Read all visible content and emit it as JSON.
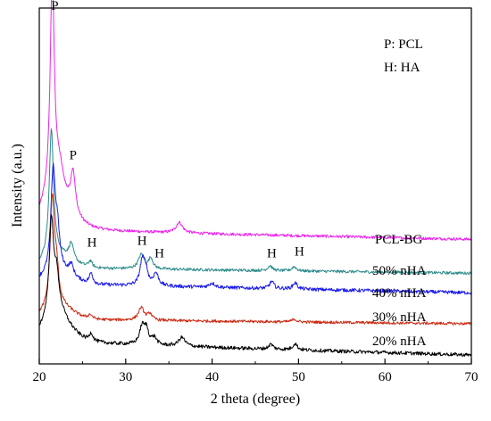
{
  "chart_data": {
    "type": "line",
    "title": "",
    "xlabel": "2 theta (degree)",
    "ylabel": "Intensity (a.u.)",
    "xlim": [
      20,
      70
    ],
    "xticks": [
      20,
      30,
      40,
      50,
      60,
      70
    ],
    "yticks_shown": false,
    "grid": false,
    "legend_position": "top-right",
    "legend": [
      {
        "text": "P: PCL"
      },
      {
        "text": "H: HA"
      }
    ],
    "series": [
      {
        "name": "PCL-BG",
        "color": "#ee22ee",
        "baseline": 0.375,
        "drift": -0.025,
        "noise": 0.004,
        "peaks": [
          {
            "x": 21.5,
            "h": 0.6,
            "w": 0.28
          },
          {
            "x": 23.9,
            "h": 0.115,
            "w": 0.32
          },
          {
            "x": 22.4,
            "h": 0.05,
            "w": 0.5
          },
          {
            "x": 36.2,
            "h": 0.03,
            "w": 0.45
          },
          {
            "x": 21.8,
            "h": 0.09,
            "w": 1.5
          }
        ]
      },
      {
        "name": "50% nHA",
        "color": "#2e8b8b",
        "baseline": 0.27,
        "drift": -0.015,
        "noise": 0.004,
        "peaks": [
          {
            "x": 21.4,
            "h": 0.36,
            "w": 0.3
          },
          {
            "x": 23.7,
            "h": 0.045,
            "w": 0.3
          },
          {
            "x": 25.9,
            "h": 0.018,
            "w": 0.25
          },
          {
            "x": 31.8,
            "h": 0.04,
            "w": 0.4
          },
          {
            "x": 32.9,
            "h": 0.03,
            "w": 0.3
          },
          {
            "x": 46.7,
            "h": 0.014,
            "w": 0.3
          },
          {
            "x": 49.5,
            "h": 0.012,
            "w": 0.3
          }
        ]
      },
      {
        "name": "40% nHA",
        "color": "#1a1aee",
        "baseline": 0.225,
        "drift": -0.025,
        "noise": 0.005,
        "peaks": [
          {
            "x": 21.6,
            "h": 0.28,
            "w": 0.3
          },
          {
            "x": 22.1,
            "h": 0.1,
            "w": 0.3
          },
          {
            "x": 23.7,
            "h": 0.03,
            "w": 0.3
          },
          {
            "x": 26.0,
            "h": 0.03,
            "w": 0.25
          },
          {
            "x": 31.9,
            "h": 0.065,
            "w": 0.3
          },
          {
            "x": 32.3,
            "h": 0.045,
            "w": 0.3
          },
          {
            "x": 33.5,
            "h": 0.035,
            "w": 0.35
          },
          {
            "x": 40.0,
            "h": 0.012,
            "w": 0.4
          },
          {
            "x": 46.9,
            "h": 0.02,
            "w": 0.3
          },
          {
            "x": 49.6,
            "h": 0.018,
            "w": 0.3
          }
        ]
      },
      {
        "name": "30% nHA",
        "color": "#cc2a14",
        "baseline": 0.125,
        "drift": -0.012,
        "noise": 0.004,
        "peaks": [
          {
            "x": 21.5,
            "h": 0.3,
            "w": 0.3
          },
          {
            "x": 22.0,
            "h": 0.09,
            "w": 0.3
          },
          {
            "x": 25.9,
            "h": 0.012,
            "w": 0.3
          },
          {
            "x": 31.8,
            "h": 0.035,
            "w": 0.4
          },
          {
            "x": 32.8,
            "h": 0.018,
            "w": 0.3
          },
          {
            "x": 49.5,
            "h": 0.008,
            "w": 0.3
          }
        ]
      },
      {
        "name": "20% nHA",
        "color": "#000000",
        "baseline": 0.06,
        "drift": -0.035,
        "noise": 0.005,
        "peaks": [
          {
            "x": 21.4,
            "h": 0.25,
            "w": 0.3
          },
          {
            "x": 22.0,
            "h": 0.09,
            "w": 0.35
          },
          {
            "x": 21.8,
            "h": 0.06,
            "w": 1.5
          },
          {
            "x": 26.0,
            "h": 0.022,
            "w": 0.25
          },
          {
            "x": 31.9,
            "h": 0.05,
            "w": 0.35
          },
          {
            "x": 32.4,
            "h": 0.04,
            "w": 0.3
          },
          {
            "x": 33.3,
            "h": 0.02,
            "w": 0.35
          },
          {
            "x": 36.5,
            "h": 0.025,
            "w": 0.45
          },
          {
            "x": 46.8,
            "h": 0.014,
            "w": 0.3
          },
          {
            "x": 49.6,
            "h": 0.018,
            "w": 0.3
          }
        ]
      }
    ],
    "annotations": [
      {
        "text": "P",
        "x": 21.8,
        "y": 0.995
      },
      {
        "text": "P",
        "x": 23.9,
        "y": 0.575
      },
      {
        "text": "H",
        "x": 26.1,
        "y": 0.33
      },
      {
        "text": "H",
        "x": 31.9,
        "y": 0.335
      },
      {
        "text": "H",
        "x": 33.9,
        "y": 0.3
      },
      {
        "text": "H",
        "x": 46.9,
        "y": 0.3
      },
      {
        "text": "H",
        "x": 50.1,
        "y": 0.305
      }
    ]
  }
}
